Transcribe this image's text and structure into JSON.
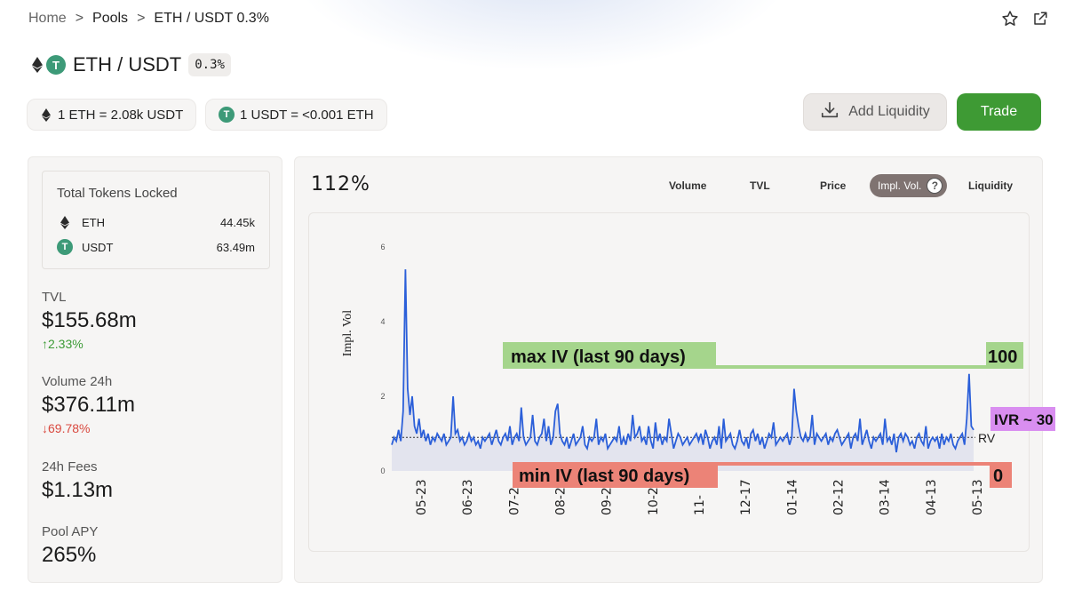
{
  "breadcrumb": {
    "home": "Home",
    "pools": "Pools",
    "current": "ETH / USDT 0.3%",
    "sep": ">"
  },
  "pair": {
    "title": "ETH / USDT",
    "fee": "0.3%",
    "usdt_symbol": "T"
  },
  "rates": {
    "eth_rate": "1 ETH = 2.08k USDT",
    "usdt_rate": "1 USDT = <0.001 ETH"
  },
  "actions": {
    "add_liquidity": "Add Liquidity",
    "trade": "Trade"
  },
  "colors": {
    "accent_green": "#3e9a34",
    "line_blue": "#2b5fd9",
    "up": "#3c9a36",
    "down": "#d9493f",
    "max_band": "#a5d58c",
    "min_band": "#ec8377",
    "ivr": "#d98ef0"
  },
  "tokens": {
    "title": "Total Tokens Locked",
    "items": [
      {
        "name": "ETH",
        "amount": "44.45k"
      },
      {
        "name": "USDT",
        "amount": "63.49m"
      }
    ]
  },
  "stats": {
    "tvl": {
      "label": "TVL",
      "value": "$155.68m",
      "change": "↑2.33%"
    },
    "volume": {
      "label": "Volume 24h",
      "value": "$376.11m",
      "change": "↓69.78%"
    },
    "fees": {
      "label": "24h Fees",
      "value": "$1.13m"
    },
    "apy": {
      "label": "Pool APY",
      "value": "265%"
    }
  },
  "chart_panel": {
    "current_value": "112%",
    "tabs": [
      "Volume",
      "TVL",
      "Price",
      "Impl. Vol.",
      "Liquidity"
    ],
    "active_tab": "Impl. Vol.",
    "help_icon": "?"
  },
  "chart_data": {
    "type": "line",
    "ylabel": "Impl. Vol",
    "ylim": [
      0,
      6
    ],
    "yticks": [
      "0",
      "2",
      "4",
      "6"
    ],
    "x_ticks": [
      "05-23",
      "06-23",
      "07-2",
      "08-2",
      "09-2",
      "10-2",
      "11-",
      "12-17",
      "01-14",
      "02-12",
      "03-14",
      "04-13",
      "05-13"
    ],
    "series": [
      {
        "values": [
          0.7,
          0.9,
          0.8,
          1.1,
          0.8,
          1.6,
          5.4,
          2.2,
          1.5,
          2.0,
          1.2,
          1.0,
          1.4,
          0.9,
          1.1,
          0.8,
          1.0,
          0.7,
          0.9,
          0.8,
          1.0,
          0.9,
          0.8,
          1.0,
          0.7,
          0.8,
          0.9,
          2.0,
          1.0,
          1.1,
          0.8,
          0.9,
          0.7,
          0.8,
          1.0,
          0.8,
          0.9,
          0.7,
          0.8,
          0.6,
          0.9,
          0.8,
          0.9,
          1.0,
          0.7,
          0.9,
          1.1,
          0.8,
          0.7,
          0.9,
          1.0,
          0.8,
          1.2,
          0.7,
          0.9,
          1.0,
          0.8,
          1.7,
          0.9,
          0.7,
          0.8,
          0.9,
          1.5,
          0.8,
          0.7,
          0.9,
          1.0,
          1.4,
          0.8,
          1.2,
          0.7,
          0.9,
          1.6,
          1.8,
          1.0,
          0.8,
          0.7,
          0.9,
          0.6,
          0.8,
          1.0,
          0.7,
          0.8,
          0.9,
          1.2,
          0.7,
          0.6,
          0.9,
          0.8,
          0.9,
          1.4,
          0.7,
          0.9,
          0.8,
          1.0,
          0.6,
          0.7,
          0.8,
          0.9,
          0.8,
          1.2,
          0.7,
          0.9,
          0.7,
          1.0,
          0.8,
          1.5,
          0.9,
          1.0,
          1.2,
          0.8,
          0.9,
          0.7,
          1.2,
          0.8,
          0.6,
          1.3,
          0.8,
          1.0,
          0.7,
          0.9,
          0.8,
          1.4,
          1.0,
          0.6,
          0.8,
          1.0,
          0.9,
          0.7,
          0.8,
          0.9,
          0.7,
          0.8,
          0.9,
          1.0,
          0.8,
          1.0,
          0.7,
          1.1,
          0.9,
          0.6,
          0.8,
          0.9,
          0.7,
          1.2,
          0.6,
          1.4,
          0.8,
          0.9,
          1.0,
          0.7,
          0.6,
          0.8,
          1.1,
          0.8,
          0.7,
          0.9,
          0.6,
          1.0,
          1.1,
          0.8,
          1.0,
          0.7,
          0.9,
          0.6,
          0.8,
          1.0,
          0.9,
          1.3,
          0.7,
          0.8,
          0.9,
          0.8,
          0.9,
          1.0,
          0.7,
          0.9,
          2.2,
          1.6,
          1.2,
          0.9,
          0.8,
          1.0,
          0.8,
          0.9,
          1.5,
          0.7,
          1.0,
          0.9,
          0.8,
          0.9,
          1.0,
          0.7,
          0.9,
          0.8,
          1.0,
          1.1,
          0.9,
          0.7,
          0.8,
          0.9,
          1.0,
          0.6,
          0.9,
          1.0,
          0.8,
          1.4,
          0.7,
          0.9,
          1.1,
          0.8,
          0.6,
          0.9,
          0.8,
          0.9,
          1.0,
          0.7,
          1.4,
          0.8,
          0.9,
          0.7,
          1.0,
          0.5,
          0.9,
          1.0,
          0.8,
          1.0,
          0.9,
          0.7,
          0.8,
          0.6,
          0.9,
          1.0,
          0.8,
          0.7,
          1.2,
          0.6,
          0.8,
          0.9,
          0.8,
          0.9,
          0.6,
          1.0,
          0.7,
          0.9,
          0.8,
          1.0,
          0.7,
          0.6,
          0.8,
          0.9,
          1.0,
          0.7,
          1.4,
          2.6,
          1.2,
          1.1
        ]
      }
    ],
    "rv_level": 0.9,
    "rv_label": "RV",
    "annotations": {
      "max_label": "max IV (last 90 days)",
      "max_value": "100",
      "min_label": "min IV (last 90 days)",
      "min_value": "0",
      "ivr_label": "IVR ~ 30"
    }
  }
}
